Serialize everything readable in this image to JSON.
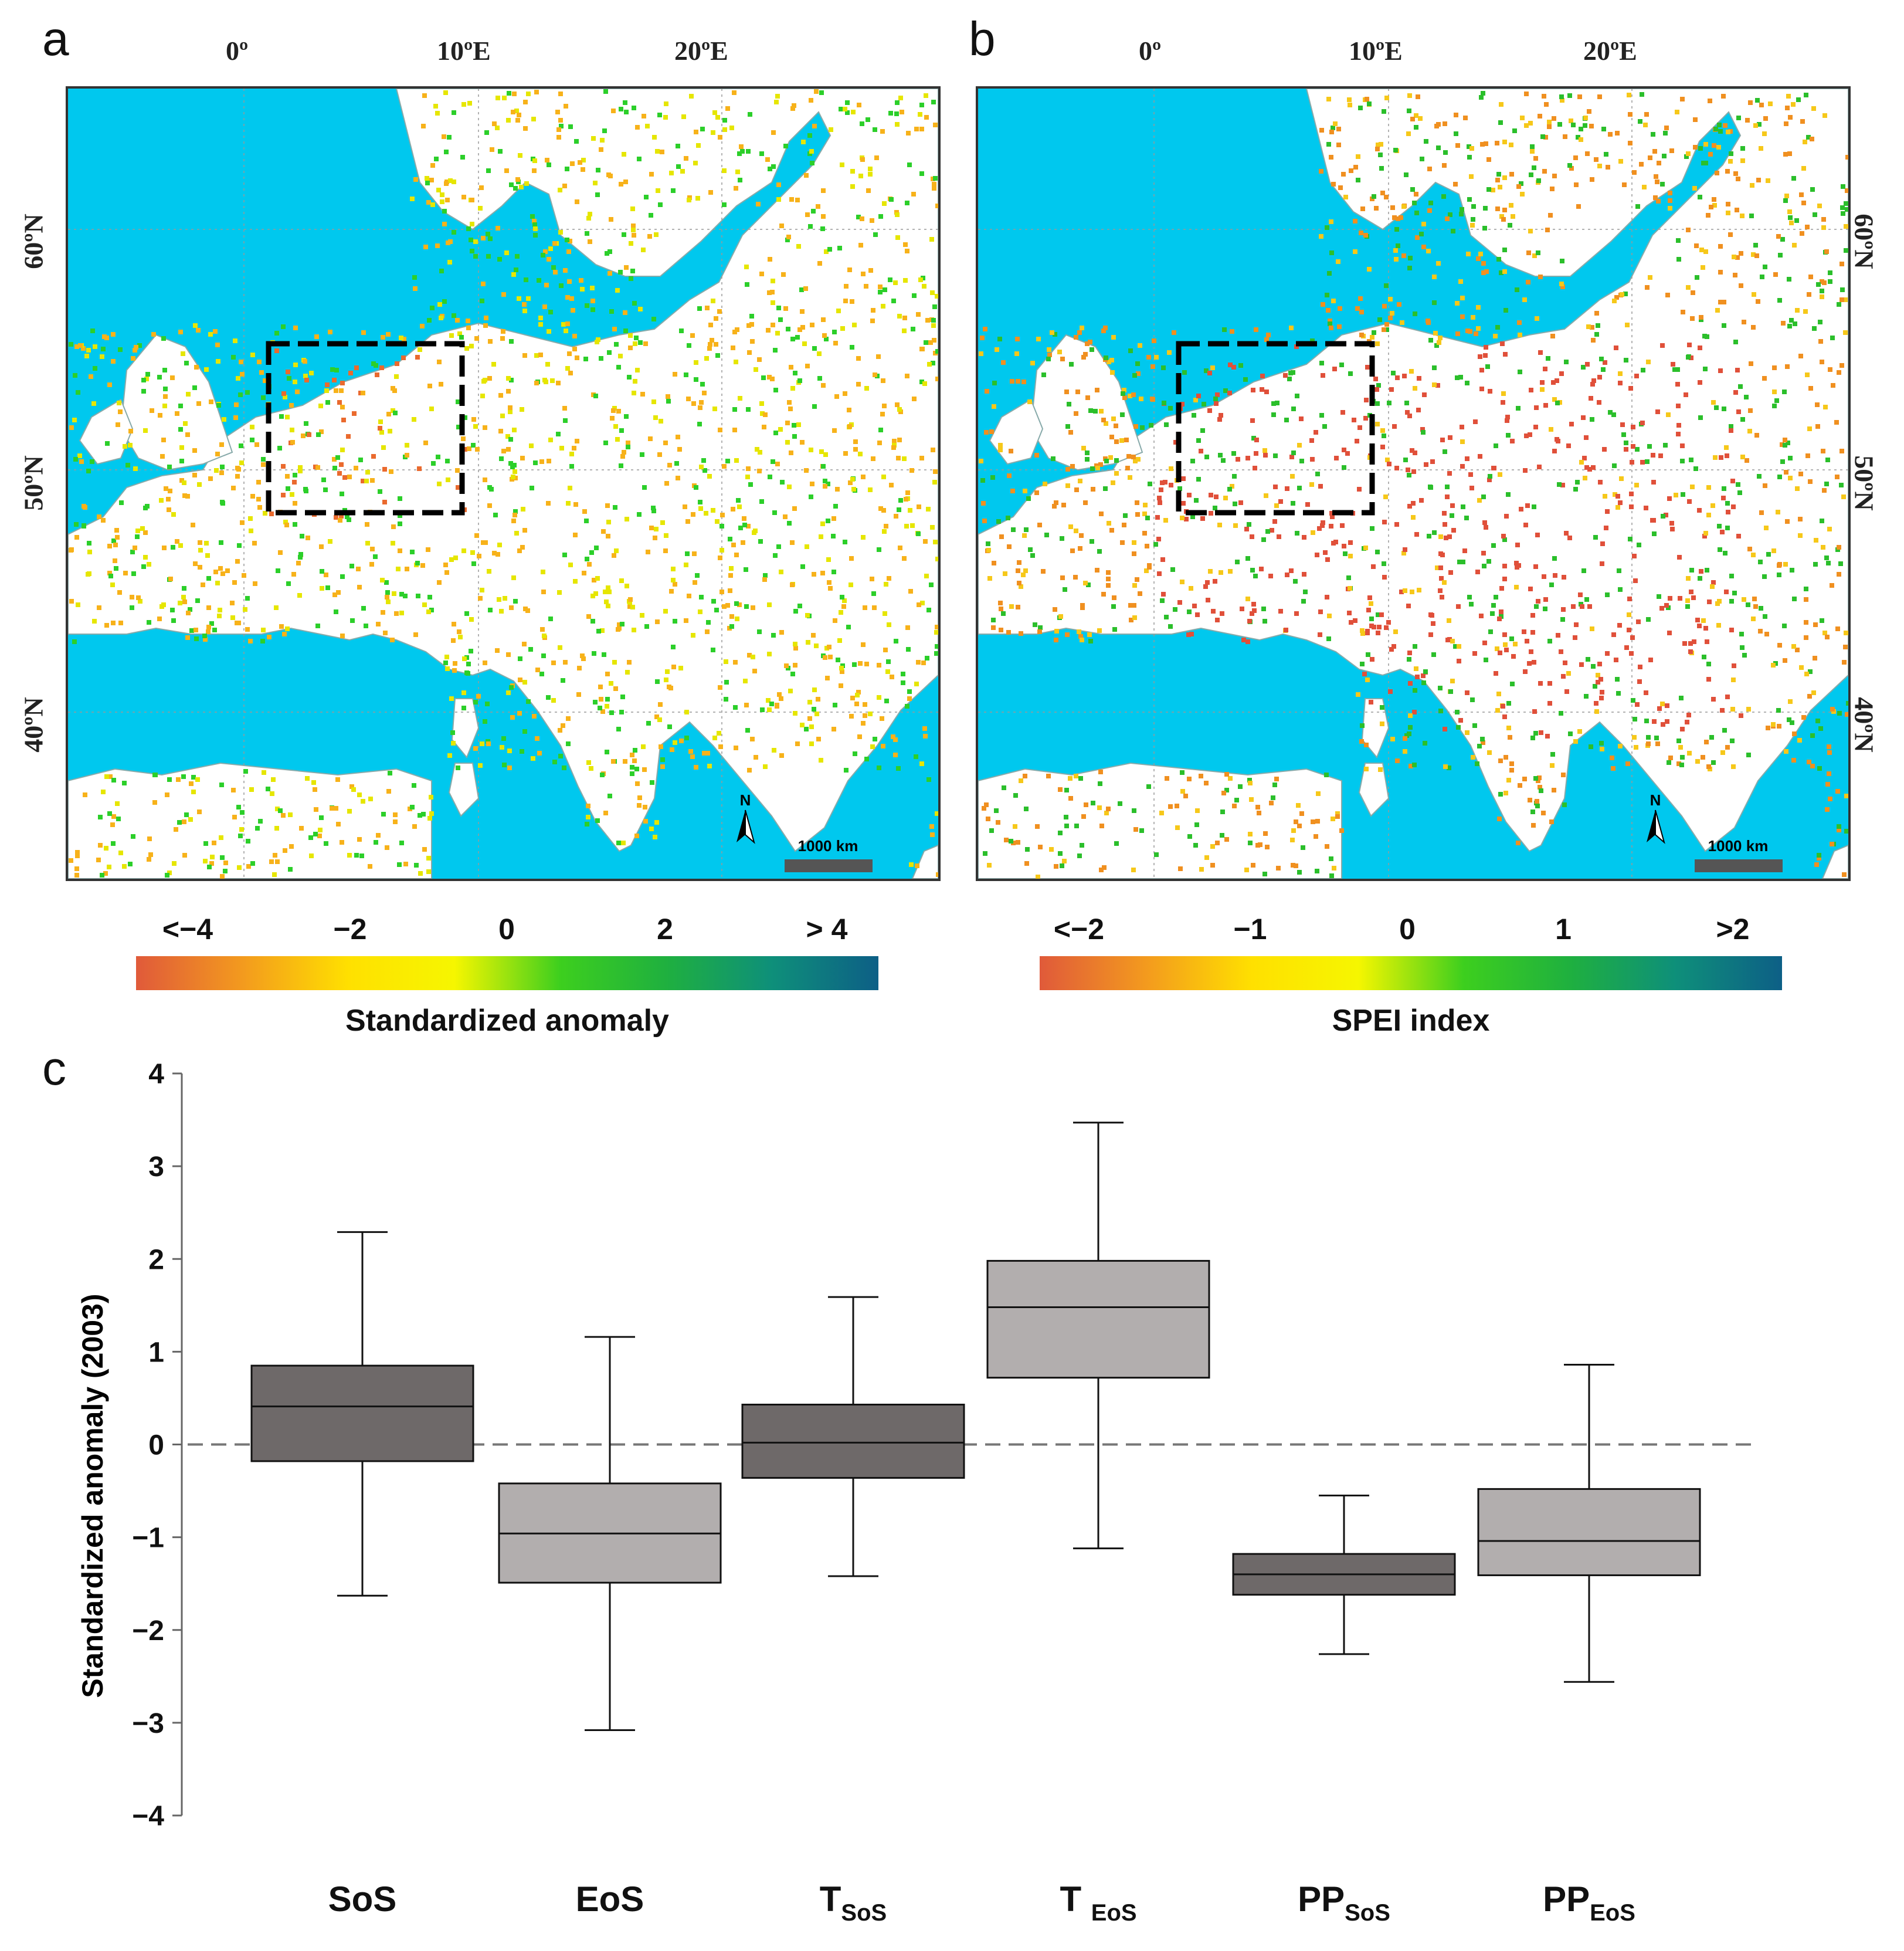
{
  "panels": {
    "a": {
      "letter": "a",
      "lon_labels": [
        "0º",
        "10ºE",
        "20ºE"
      ],
      "lat_labels": [
        "60ºN",
        "50ºN",
        "40ºN"
      ],
      "north": "N",
      "scale": "1000 km",
      "colorbar": {
        "ticks": [
          "<−4",
          "−2",
          "0",
          "2",
          "> 4"
        ],
        "title": "Standardized anomaly"
      }
    },
    "b": {
      "letter": "b",
      "lon_labels": [
        "0º",
        "10ºE",
        "20ºE"
      ],
      "lat_labels": [
        "60ºN",
        "50ºN",
        "40ºN"
      ],
      "north": "N",
      "scale": "1000 km",
      "colorbar": {
        "ticks": [
          "<−2",
          "−1",
          "0",
          "1",
          ">2"
        ],
        "title": "SPEI index"
      }
    },
    "c": {
      "letter": "c"
    }
  },
  "colors": {
    "sea": "#00c8ee",
    "land": "#ffffff",
    "box_dark": "#6e6969",
    "box_light": "#b2aeae",
    "ramp": [
      "#e05a3a",
      "#f39a1e",
      "#ffe000",
      "#f6f600",
      "#3dcf1e",
      "#1fb03f",
      "#0e8f7a",
      "#0d5f86"
    ]
  },
  "chart_data": {
    "type": "box",
    "ylabel": "Standardized anomaly (2003)",
    "ylim": [
      -4,
      4
    ],
    "yticks": [
      "4",
      "3",
      "2",
      "1",
      "0",
      "-1",
      "-2",
      "-3",
      "-4"
    ],
    "reference_line": 0,
    "categories": [
      {
        "label": "SoS",
        "sub": "",
        "shade": "dark",
        "whisker_low": -1.63,
        "q1": -0.18,
        "median": 0.41,
        "q3": 0.85,
        "whisker_high": 2.29
      },
      {
        "label": "EoS",
        "sub": "",
        "shade": "light",
        "whisker_low": -3.08,
        "q1": -1.49,
        "median": -0.96,
        "q3": -0.42,
        "whisker_high": 1.16
      },
      {
        "label": "T",
        "sub": "SoS",
        "shade": "dark",
        "whisker_low": -1.42,
        "q1": -0.36,
        "median": 0.02,
        "q3": 0.43,
        "whisker_high": 1.59
      },
      {
        "label": "T ",
        "sub": "EoS",
        "shade": "light",
        "whisker_low": -1.12,
        "q1": 0.72,
        "median": 1.48,
        "q3": 1.98,
        "whisker_high": 3.47
      },
      {
        "label": "PP",
        "sub": "SoS",
        "shade": "dark",
        "whisker_low": -2.26,
        "q1": -1.62,
        "median": -1.4,
        "q3": -1.18,
        "whisker_high": -0.55
      },
      {
        "label": "PP",
        "sub": "EoS",
        "shade": "light",
        "whisker_low": -2.56,
        "q1": -1.41,
        "median": -1.04,
        "q3": -0.48,
        "whisker_high": 0.86
      }
    ]
  }
}
